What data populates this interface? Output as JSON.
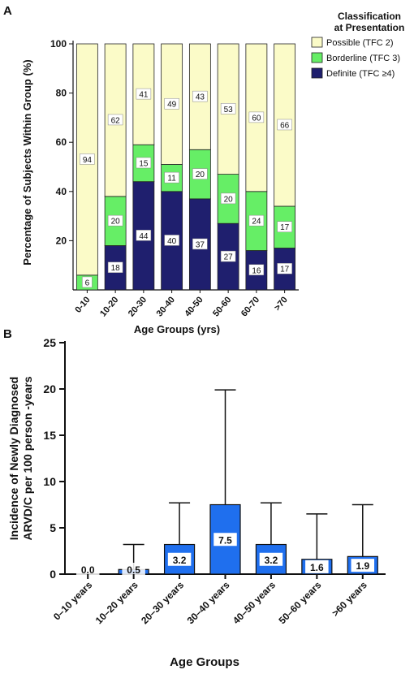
{
  "chart_data": [
    {
      "panel": "A",
      "type": "bar",
      "stacked": true,
      "categories": [
        "0-10",
        "10-20",
        "20-30",
        "30-40",
        "40-50",
        "50-60",
        "60-70",
        ">70"
      ],
      "series": [
        {
          "name": "Definite (TFC ≥4)",
          "values": [
            0,
            18,
            44,
            40,
            37,
            27,
            16,
            17
          ],
          "color": "#1f1f6e"
        },
        {
          "name": "Borderline (TFC 3)",
          "values": [
            6,
            20,
            15,
            11,
            20,
            20,
            24,
            17
          ],
          "color": "#66ee66"
        },
        {
          "name": "Possible (TFC 2)",
          "values": [
            94,
            62,
            41,
            49,
            43,
            53,
            60,
            66
          ],
          "color": "#fbfbc8"
        }
      ],
      "xlabel": "Age Groups (yrs)",
      "ylabel": "Percentage of Subjects Within Group (%)",
      "ylim": [
        0,
        100
      ],
      "yticks": [
        20,
        40,
        60,
        80,
        100
      ],
      "legend_title": "Classification at Presentation",
      "legend_title_lines": [
        "Classification",
        "at Presentation"
      ],
      "legend_position": "top-right",
      "legend_entries": [
        "Possible (TFC 2)",
        "Borderline (TFC 3)",
        "Definite (TFC ≥4)"
      ]
    },
    {
      "panel": "B",
      "type": "bar",
      "categories": [
        "0–10 years",
        "10–20 years",
        "20–30 years",
        "30–40 years",
        "40–50 years",
        "50–60 years",
        ">60 years"
      ],
      "values": [
        0.0,
        0.5,
        3.2,
        7.5,
        3.2,
        1.6,
        1.9
      ],
      "value_labels": [
        "0.0",
        "0.5",
        "3.2",
        "7.5",
        "3.2",
        "1.6",
        "1.9"
      ],
      "error_upper": [
        0.0,
        3.2,
        7.7,
        19.9,
        7.7,
        6.5,
        7.5
      ],
      "color": "#1f6fee",
      "xlabel": "Age Groups",
      "ylabel": "Incidence of Newly Diagnosed ARVD/C per 100 person-years",
      "ylabel_lines": [
        "Incidence of Newly Diagnosed",
        "ARVD/C per 100 person -years"
      ],
      "ylim": [
        0,
        25
      ],
      "yticks": [
        0,
        5,
        10,
        15,
        20,
        25
      ]
    }
  ]
}
